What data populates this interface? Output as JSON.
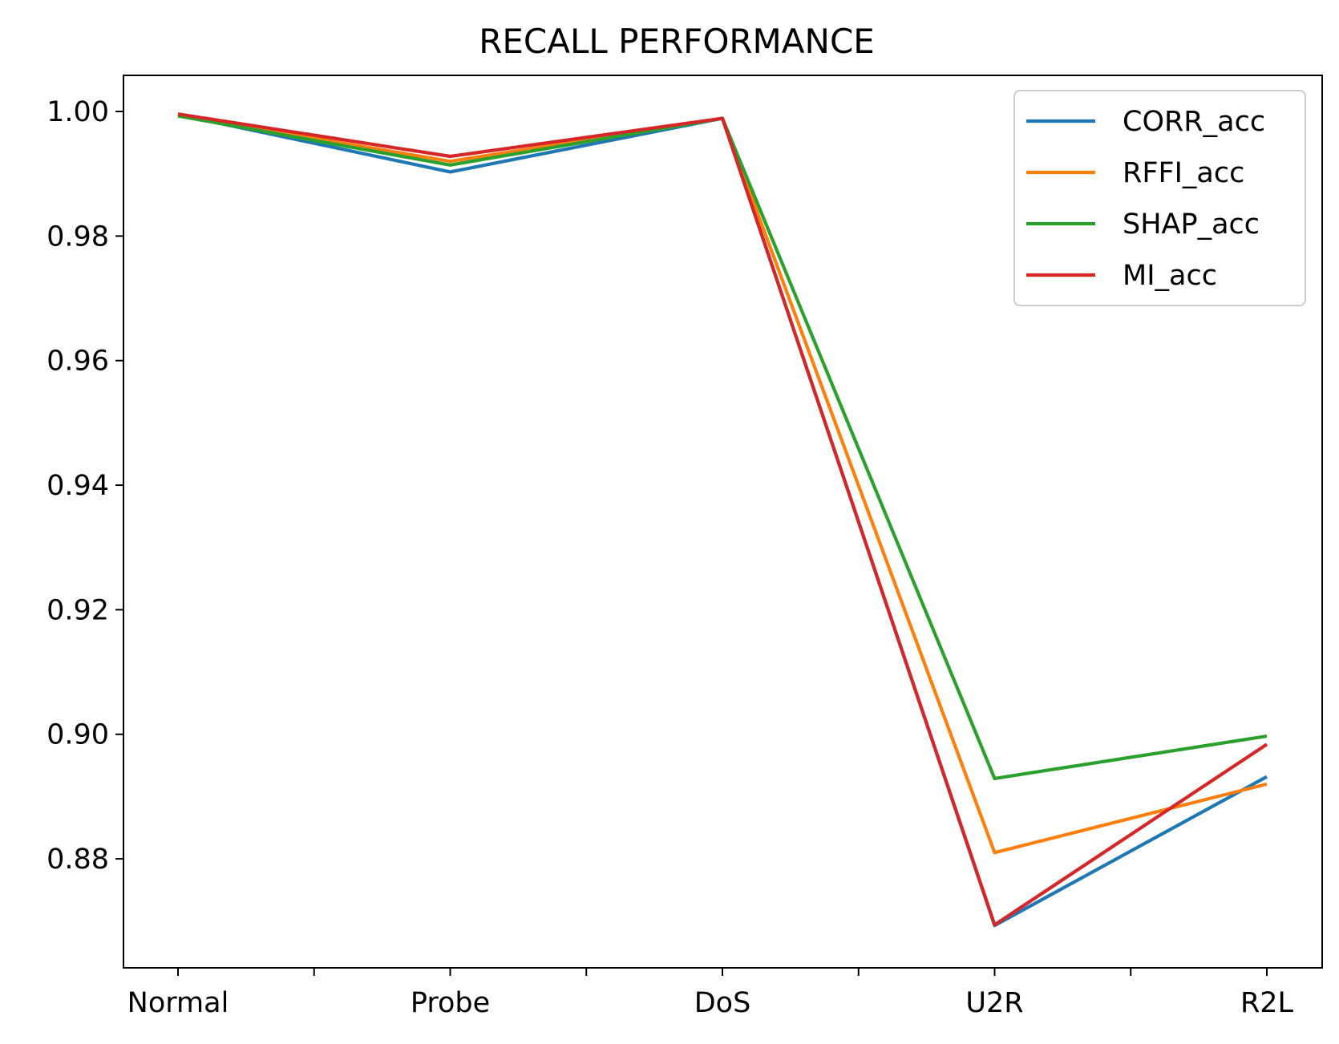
{
  "chart_data": {
    "type": "line",
    "title": "RECALL PERFORMANCE",
    "xlabel": "",
    "ylabel": "",
    "categories": [
      "Normal",
      "Probe",
      "DoS",
      "U2R",
      "R2L"
    ],
    "ylim": [
      0.8625,
      1.0058
    ],
    "y_ticks": [
      "1.00",
      "0.98",
      "0.96",
      "0.94",
      "0.92",
      "0.90",
      "0.88"
    ],
    "grid": false,
    "legend_position": "top-right",
    "series": [
      {
        "name": "CORR_acc",
        "color": "#1f77b4",
        "values": [
          0.9995,
          0.9903,
          0.9989,
          0.8693,
          0.8932
        ]
      },
      {
        "name": "RFFI_acc",
        "color": "#ff7f0e",
        "values": [
          0.9994,
          0.992,
          0.9989,
          0.881,
          0.892
        ]
      },
      {
        "name": "SHAP_acc",
        "color": "#2ca02c",
        "values": [
          0.9993,
          0.9914,
          0.9989,
          0.8929,
          0.8997
        ]
      },
      {
        "name": "MI_acc",
        "color": "#d62728",
        "values": [
          0.9996,
          0.9928,
          0.9989,
          0.8694,
          0.8984
        ]
      }
    ]
  }
}
